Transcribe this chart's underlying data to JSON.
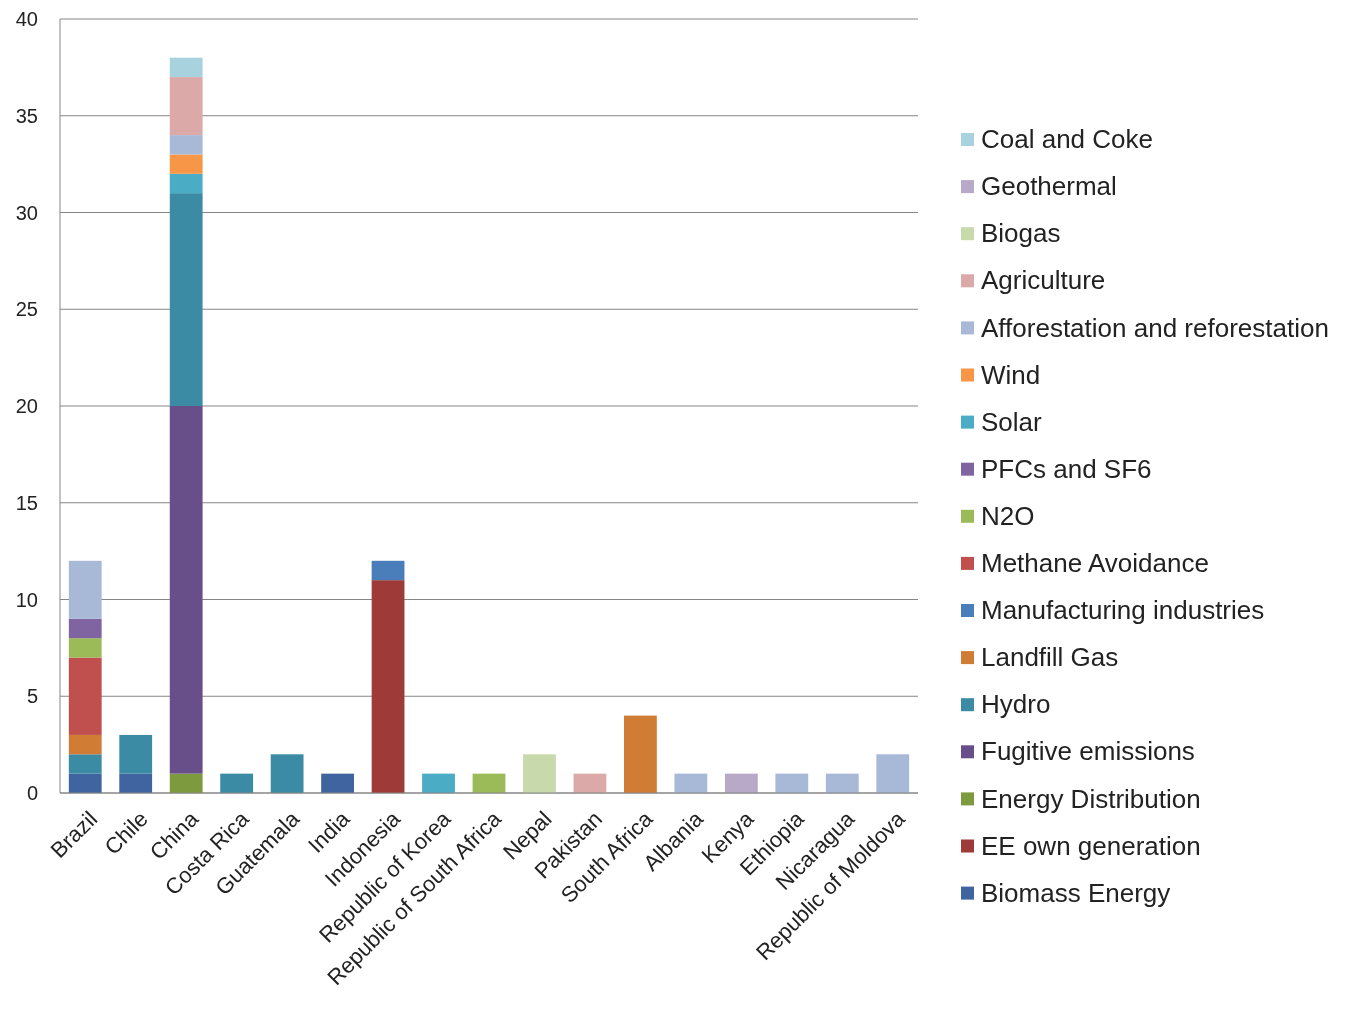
{
  "chart_data": {
    "type": "bar",
    "stacked": true,
    "categories": [
      "Brazil",
      "Chile",
      "China",
      "Costa Rica",
      "Guatemala",
      "India",
      "Indonesia",
      "Republic of Korea",
      "Republic of South Africa",
      "Nepal",
      "Pakistan",
      "South Africa",
      "Albania",
      "Kenya",
      "Ethiopia",
      "Nicaragua",
      "Republic of Moldova"
    ],
    "ylim": [
      0,
      40
    ],
    "yticks": [
      0,
      5,
      10,
      15,
      20,
      25,
      30,
      35,
      40
    ],
    "grid": "y",
    "legend": "right",
    "series": [
      {
        "name": "Biomass Energy",
        "color": "#4064a0",
        "values": [
          1,
          1,
          null,
          null,
          null,
          1,
          null,
          null,
          null,
          null,
          null,
          null,
          null,
          null,
          null,
          null,
          null
        ]
      },
      {
        "name": "EE own generation",
        "color": "#9e3b38",
        "values": [
          null,
          null,
          null,
          null,
          null,
          null,
          11,
          null,
          null,
          null,
          null,
          null,
          null,
          null,
          null,
          null,
          null
        ]
      },
      {
        "name": "Energy Distribution",
        "color": "#7e9a3e",
        "values": [
          null,
          null,
          1,
          null,
          null,
          null,
          null,
          null,
          null,
          null,
          null,
          null,
          null,
          null,
          null,
          null,
          null
        ]
      },
      {
        "name": "Fugitive emissions",
        "color": "#684f8a",
        "values": [
          null,
          null,
          19,
          null,
          null,
          null,
          null,
          null,
          null,
          null,
          null,
          null,
          null,
          null,
          null,
          null,
          null
        ]
      },
      {
        "name": "Hydro",
        "color": "#3a8ba3",
        "values": [
          1,
          2,
          11,
          1,
          2,
          null,
          null,
          null,
          null,
          null,
          null,
          null,
          null,
          null,
          null,
          null,
          null
        ]
      },
      {
        "name": "Landfill Gas",
        "color": "#d07c35",
        "values": [
          1,
          null,
          null,
          null,
          null,
          null,
          null,
          null,
          null,
          null,
          null,
          4,
          null,
          null,
          null,
          null,
          null
        ]
      },
      {
        "name": "Manufacturing industries",
        "color": "#4a7ebb",
        "values": [
          null,
          null,
          null,
          null,
          null,
          null,
          1,
          null,
          null,
          null,
          null,
          null,
          null,
          null,
          null,
          null,
          null
        ]
      },
      {
        "name": "Methane Avoidance",
        "color": "#c0504d",
        "values": [
          4,
          null,
          null,
          null,
          null,
          null,
          null,
          null,
          null,
          null,
          null,
          null,
          null,
          null,
          null,
          null,
          null
        ]
      },
      {
        "name": "N2O",
        "color": "#9bbb59",
        "values": [
          1,
          null,
          null,
          null,
          null,
          null,
          null,
          null,
          1,
          null,
          null,
          null,
          null,
          null,
          null,
          null,
          null
        ]
      },
      {
        "name": "PFCs and SF6",
        "color": "#8064a2",
        "values": [
          1,
          null,
          null,
          null,
          null,
          null,
          null,
          null,
          null,
          null,
          null,
          null,
          null,
          null,
          null,
          null,
          null
        ]
      },
      {
        "name": "Solar",
        "color": "#4bacc6",
        "values": [
          null,
          null,
          1,
          null,
          null,
          null,
          null,
          1,
          null,
          null,
          null,
          null,
          null,
          null,
          null,
          null,
          null
        ]
      },
      {
        "name": "Wind",
        "color": "#f79646",
        "values": [
          null,
          null,
          1,
          null,
          null,
          null,
          null,
          null,
          null,
          null,
          null,
          null,
          null,
          null,
          null,
          null,
          null
        ]
      },
      {
        "name": "Afforestation and reforestation",
        "color": "#a8b9d8",
        "values": [
          3,
          null,
          1,
          null,
          null,
          null,
          null,
          null,
          null,
          null,
          null,
          null,
          1,
          null,
          1,
          1,
          2
        ]
      },
      {
        "name": "Agriculture",
        "color": "#dba9a8",
        "values": [
          null,
          null,
          3,
          null,
          null,
          null,
          null,
          null,
          null,
          null,
          1,
          null,
          null,
          null,
          null,
          null,
          null
        ]
      },
      {
        "name": "Biogas",
        "color": "#c8d9ac",
        "values": [
          null,
          null,
          null,
          null,
          null,
          null,
          null,
          null,
          null,
          2,
          null,
          null,
          null,
          null,
          null,
          null,
          null
        ]
      },
      {
        "name": "Geothermal",
        "color": "#b8a9c9",
        "values": [
          null,
          null,
          null,
          null,
          null,
          null,
          null,
          null,
          null,
          null,
          null,
          null,
          null,
          1,
          null,
          null,
          null
        ]
      },
      {
        "name": "Coal and Coke",
        "color": "#a8d3de",
        "values": [
          null,
          null,
          1,
          null,
          null,
          null,
          null,
          null,
          null,
          null,
          null,
          null,
          null,
          null,
          null,
          null,
          null
        ]
      }
    ]
  }
}
